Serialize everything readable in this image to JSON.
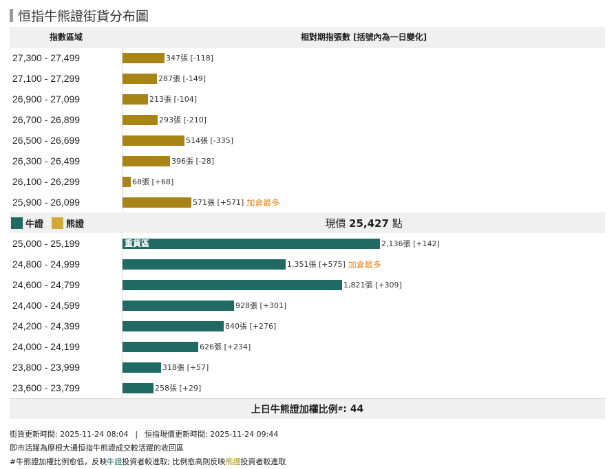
{
  "title": "恒指牛熊證街貨分布圖",
  "header": {
    "col1": "指數區域",
    "col2": "相對期指張數 [括號內為一日變化]"
  },
  "colors": {
    "bear": "#a88416",
    "bull": "#1f6b63",
    "hot": "#e08a1e"
  },
  "legend": {
    "bull": "牛證",
    "bear": "熊證"
  },
  "price": {
    "prefix": "現價",
    "value": "25,427",
    "suffix": "點"
  },
  "hot_label": "加倉最多",
  "heavy_label": "重貨區",
  "chart_data": {
    "type": "bar",
    "orientation": "horizontal",
    "max_value": 2136,
    "bear": [
      {
        "range": "27,300 - 27,499",
        "value": 347,
        "label": "347張 [-118]"
      },
      {
        "range": "27,100 - 27,299",
        "value": 287,
        "label": "287張 [-149]"
      },
      {
        "range": "26,900 - 27,099",
        "value": 213,
        "label": "213張 [-104]"
      },
      {
        "range": "26,700 - 26,899",
        "value": 293,
        "label": "293張 [-210]"
      },
      {
        "range": "26,500 - 26,699",
        "value": 514,
        "label": "514張 [-335]"
      },
      {
        "range": "26,300 - 26,499",
        "value": 396,
        "label": "396張 [-28]"
      },
      {
        "range": "26,100 - 26,299",
        "value": 68,
        "label": "68張 [+68]"
      },
      {
        "range": "25,900 - 26,099",
        "value": 571,
        "label": "571張 [+571]",
        "hot": true
      }
    ],
    "bull": [
      {
        "range": "25,000 - 25,199",
        "value": 2136,
        "label": "2,136張 [+142]",
        "heavy": true
      },
      {
        "range": "24,800 - 24,999",
        "value": 1351,
        "label": "1,351張 [+575]",
        "hot": true
      },
      {
        "range": "24,600 - 24,799",
        "value": 1821,
        "label": "1,821張 [+309]"
      },
      {
        "range": "24,400 - 24,599",
        "value": 928,
        "label": "928張 [+301]"
      },
      {
        "range": "24,200 - 24,399",
        "value": 840,
        "label": "840張 [+276]"
      },
      {
        "range": "24,000 - 24,199",
        "value": 626,
        "label": "626張 [+234]"
      },
      {
        "range": "23,800 - 23,999",
        "value": 318,
        "label": "318張 [+57]"
      },
      {
        "range": "23,600 - 23,799",
        "value": 258,
        "label": "258張 [+29]"
      }
    ]
  },
  "ratio": {
    "label": "上日牛熊證加權比例",
    "mark": "#",
    "value": ": 44"
  },
  "notes": {
    "update1": "街貨更新時間: 2025-11-24 08:04",
    "separator": "|",
    "update2": "恒指現價更新時間: 2025-11-24 09:44",
    "line2": "即市活躍為摩根大通恒指牛熊證成交較活躍的收回區",
    "line3_a": "#牛熊證加權比例愈低，反映",
    "line3_bull": "牛證",
    "line3_b": "投資者較進取; 比例愈高則反映",
    "line3_bear": "熊證",
    "line3_c": "投資者較進取"
  }
}
